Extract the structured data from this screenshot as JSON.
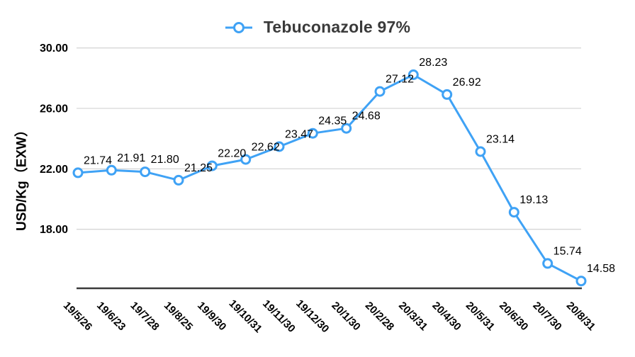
{
  "legend": {
    "label": "Tebuconazole 97%"
  },
  "chart_data": {
    "type": "line",
    "title": "Tebuconazole 97%",
    "ylabel": "USD/Kg（EXW）",
    "categories": [
      "19/5/26",
      "19/6/23",
      "19/7/28",
      "19/8/25",
      "19/9/30",
      "19/10/31",
      "19/11/30",
      "19/12/30",
      "20/1/30",
      "20/2/28",
      "20/3/31",
      "20/4/30",
      "20/5/31",
      "20/6/30",
      "20/7/30",
      "20/8/31"
    ],
    "series": [
      {
        "name": "Tebuconazole 97%",
        "values": [
          21.74,
          21.91,
          21.8,
          21.25,
          22.2,
          22.62,
          23.47,
          24.35,
          24.68,
          27.12,
          28.23,
          26.92,
          23.14,
          19.13,
          15.74,
          14.58
        ]
      }
    ],
    "data_labels": [
      "21.74",
      "21.91",
      "21.80",
      "21.25",
      "22.20",
      "22.62",
      "23.47",
      "24.35",
      "24.68",
      "27.12",
      "28.23",
      "26.92",
      "23.14",
      "19.13",
      "15.74",
      "14.58"
    ],
    "y_tick_labels": [
      "30.00",
      "26.00",
      "22.00",
      "18.00"
    ],
    "y_tick_values": [
      30,
      26,
      22,
      18
    ],
    "ylim": [
      14.1,
      30.1
    ],
    "grid": "horizontal",
    "legend_position": "top",
    "marker": "open-circle",
    "line_color": "#3FA2F5",
    "grid_color": "#d6d6d6",
    "axis_color": "#3a3a3a",
    "label_color": "#000000",
    "title_color": "#3a3a3a"
  }
}
